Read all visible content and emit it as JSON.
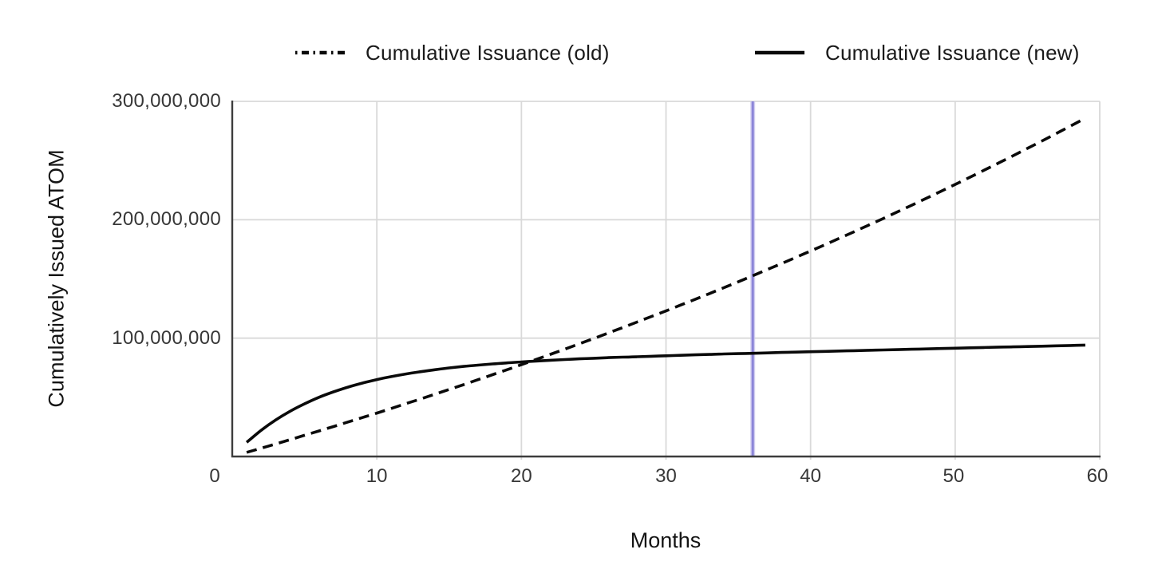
{
  "chart_data": {
    "type": "line",
    "title": "",
    "xlabel": "Months",
    "ylabel": "Cumulatively Issued ATOM",
    "grid": true,
    "legend_position": "top",
    "xlim": [
      0,
      60
    ],
    "ylim_millions": [
      0,
      300
    ],
    "values_unit": "millions of ATOM",
    "x_ticks": [
      "0",
      "10",
      "20",
      "30",
      "40",
      "50",
      "60"
    ],
    "x_tick_values": [
      0,
      10,
      20,
      30,
      40,
      50,
      60
    ],
    "y_ticks": [
      {
        "value_millions": 100,
        "label": "100,000,000"
      },
      {
        "value_millions": 200,
        "label": "200,000,000"
      },
      {
        "value_millions": 300,
        "label": "300,000,000"
      }
    ],
    "months": [
      1,
      2,
      3,
      4,
      5,
      6,
      7,
      8,
      9,
      10,
      11,
      12,
      13,
      14,
      15,
      16,
      17,
      18,
      19,
      20,
      21,
      22,
      23,
      24,
      25,
      26,
      27,
      28,
      29,
      30,
      31,
      32,
      33,
      34,
      35,
      36,
      37,
      38,
      39,
      40,
      41,
      42,
      43,
      44,
      45,
      46,
      47,
      48,
      49,
      50,
      51,
      52,
      53,
      54,
      55,
      56,
      57,
      58,
      59
    ],
    "series": [
      {
        "name": "Cumulative Issuance (old)",
        "style": "dashed",
        "color": "#0a0a0a",
        "values_millions": [
          3.5,
          7.0,
          10.6,
          14.2,
          17.9,
          21.6,
          25.3,
          29.1,
          32.9,
          36.7,
          40.6,
          44.6,
          48.5,
          52.6,
          56.6,
          60.7,
          64.9,
          69.1,
          73.3,
          77.6,
          81.9,
          86.3,
          90.7,
          95.2,
          99.7,
          104.3,
          108.9,
          113.6,
          118.3,
          123.0,
          127.9,
          132.7,
          137.6,
          142.6,
          147.6,
          152.7,
          157.9,
          163.0,
          168.3,
          173.6,
          178.9,
          184.4,
          189.8,
          195.4,
          200.9,
          206.6,
          212.3,
          218.1,
          223.9,
          229.8,
          235.8,
          241.8,
          247.9,
          254.0,
          260.3,
          266.5,
          272.9,
          279.3,
          285.8
        ]
      },
      {
        "name": "Cumulative Issuance (new)",
        "style": "solid",
        "color": "#0a0a0a",
        "values_millions": [
          11.9,
          22.1,
          30.8,
          38.2,
          44.5,
          50.0,
          54.6,
          58.6,
          62.0,
          65.0,
          67.5,
          69.7,
          71.6,
          73.3,
          74.8,
          76.1,
          77.2,
          78.2,
          79.1,
          79.9,
          80.6,
          81.3,
          81.9,
          82.5,
          83.0,
          83.5,
          83.9,
          84.3,
          84.7,
          85.1,
          85.5,
          85.9,
          86.2,
          86.6,
          86.9,
          87.2,
          87.5,
          87.9,
          88.2,
          88.5,
          88.8,
          89.1,
          89.4,
          89.7,
          90.0,
          90.3,
          90.6,
          90.9,
          91.2,
          91.5,
          91.8,
          92.1,
          92.4,
          92.6,
          92.9,
          93.2,
          93.5,
          93.8,
          94.1
        ]
      }
    ],
    "marker_line": {
      "x_month": 36,
      "color": "#8d86d9",
      "halo_color": "#c7c4ee"
    },
    "colors": {
      "grid": "#d9d9d9",
      "spine": "#3d3d3d",
      "curve": "#0a0a0a",
      "background": "#ffffff"
    }
  }
}
